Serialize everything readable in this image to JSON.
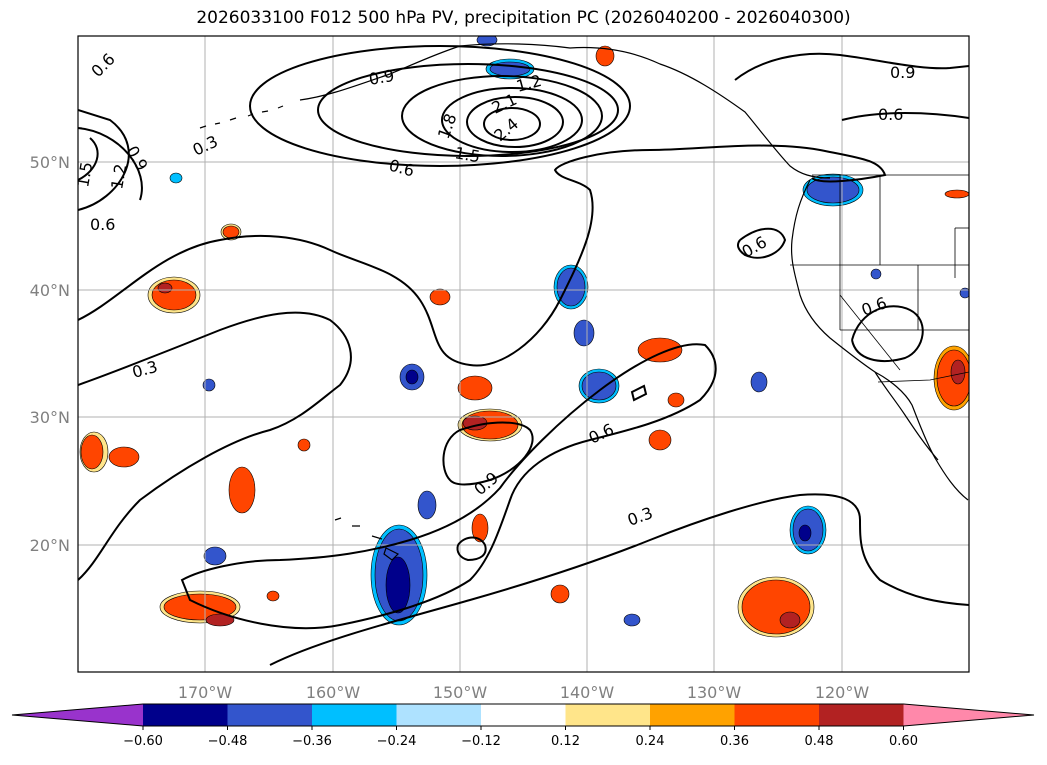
{
  "title": "2026033100 F012 500 hPa PV, precipitation PC (2026040200 - 2026040300)",
  "grid": {
    "lat_labels": [
      "50°N",
      "40°N",
      "30°N",
      "20°N"
    ],
    "lon_labels": [
      "170°W",
      "160°W",
      "150°W",
      "140°W",
      "130°W",
      "120°W"
    ]
  },
  "contour_labels": [
    "0.6",
    "0.9",
    "1.2",
    "2.1",
    "2.4",
    "1.8",
    "1.5",
    "0.3",
    "0.9",
    "1.5",
    "1.2",
    "0.6",
    "0.9",
    "0.6",
    "0.6",
    "0.6",
    "0.3",
    "0.6",
    "0.9",
    "0.3"
  ],
  "colorbar": {
    "ticks": [
      "−0.60",
      "−0.48",
      "−0.36",
      "−0.24",
      "−0.12",
      "0.12",
      "0.24",
      "0.36",
      "0.48",
      "0.60"
    ],
    "colors": [
      "#9933cc",
      "#00008b",
      "#3355cc",
      "#00bfff",
      "#aee2ff",
      "#ffffff",
      "#ffe58a",
      "#ffa200",
      "#ff4500",
      "#b22222",
      "#ff88aa"
    ]
  }
}
